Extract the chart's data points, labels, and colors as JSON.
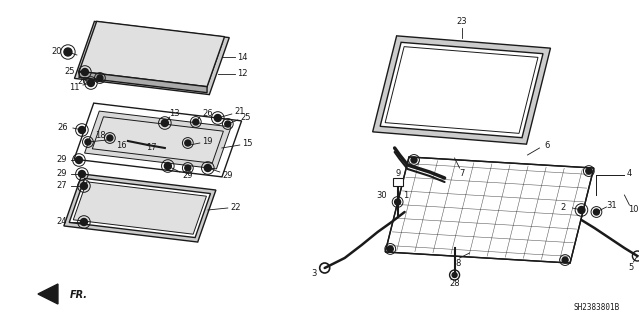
{
  "bg_color": "#ffffff",
  "line_color": "#1a1a1a",
  "diagram_code": "SH2383801B",
  "figsize": [
    6.4,
    3.19
  ],
  "dpi": 100
}
